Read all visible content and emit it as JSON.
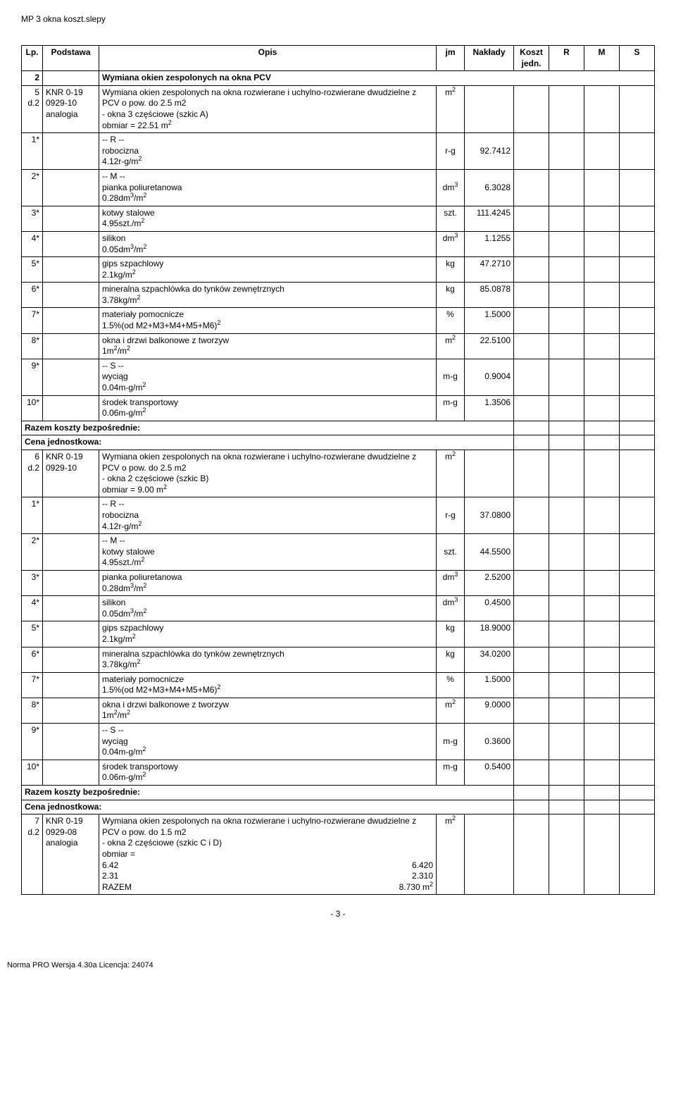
{
  "doc_title": "MP 3 okna koszt.slepy",
  "page_number": "- 3 -",
  "footer": "Norma PRO Wersja 4.30a Licencja: 24074",
  "headers": {
    "lp": "Lp.",
    "podstawa": "Podstawa",
    "opis": "Opis",
    "jm": "jm",
    "naklady": "Nakłady",
    "koszt": "Koszt jedn.",
    "r": "R",
    "m": "M",
    "s": "S"
  },
  "section2": {
    "lp": "2",
    "title": "Wymiana okien zespolonych na okna PCV"
  },
  "item5": {
    "lp": "5",
    "lp2": "d.2",
    "pod1": "KNR 0-19",
    "pod2": "0929-10",
    "pod3": "analogia",
    "opis1": "Wymiana okien zespolonych na okna rozwierane i uchylno-rozwierane dwudzielne z PCV o pow. do 2.5 m2",
    "opis2": "- okna 3 częściowe (szkic A)",
    "opis3": "obmiar  = 22.51 m",
    "jm": "m"
  },
  "r_label": "-- R --",
  "m_label": "-- M --",
  "s_label": "-- S --",
  "rows5": [
    {
      "lp": "1*",
      "opis": "robocizna",
      "sub": "4.12r-g/m",
      "jm": "r-g",
      "nak": "92.7412"
    },
    {
      "lp": "2*",
      "opis": "pianka poliuretanowa",
      "sub": "0.28dm",
      "sub2": "/m",
      "jm": "dm",
      "nak": "6.3028"
    },
    {
      "lp": "3*",
      "opis": "kotwy stalowe",
      "sub": "4.95szt./m",
      "jm": "szt.",
      "nak": "111.4245"
    },
    {
      "lp": "4*",
      "opis": "silikon",
      "sub": "0.05dm",
      "sub2": "/m",
      "jm": "dm",
      "nak": "1.1255"
    },
    {
      "lp": "5*",
      "opis": "gips szpachlowy",
      "sub": "2.1kg/m",
      "jm": "kg",
      "nak": "47.2710"
    },
    {
      "lp": "6*",
      "opis": "mineralna szpachlówka do tynków zewnętrznych",
      "sub": "3.78kg/m",
      "jm": "kg",
      "nak": "85.0878"
    },
    {
      "lp": "7*",
      "opis": "materiały pomocnicze",
      "sub": "1.5%(od M2+M3+M4+M5+M6)",
      "jm": "%",
      "nak": "1.5000"
    },
    {
      "lp": "8*",
      "opis": "okna i drzwi balkonowe z tworzyw",
      "sub": "1m",
      "sub2": "/m",
      "jm": "m",
      "nak": "22.5100"
    },
    {
      "lp": "9*",
      "opis": "wyciąg",
      "sub": "0.04m-g/m",
      "jm": "m-g",
      "nak": "0.9004"
    },
    {
      "lp": "10*",
      "opis": "środek transportowy",
      "sub": "0.06m-g/m",
      "jm": "m-g",
      "nak": "1.3506"
    }
  ],
  "razem": "Razem koszty bezpośrednie:",
  "cena": "Cena jednostkowa:",
  "item6": {
    "lp": "6",
    "lp2": "d.2",
    "pod1": "KNR 0-19",
    "pod2": "0929-10",
    "opis1": "Wymiana okien zespolonych na okna rozwierane i uchylno-rozwierane dwudzielne z PCV o pow. do 2.5 m2",
    "opis2": "- okna 2 częściowe (szkic B)",
    "opis3": "obmiar  = 9.00 m",
    "jm": "m"
  },
  "rows6": [
    {
      "lp": "1*",
      "opis": "robocizna",
      "sub": "4.12r-g/m",
      "jm": "r-g",
      "nak": "37.0800"
    },
    {
      "lp": "2*",
      "opis": "kotwy stalowe",
      "sub": "4.95szt./m",
      "jm": "szt.",
      "nak": "44.5500"
    },
    {
      "lp": "3*",
      "opis": "pianka poliuretanowa",
      "sub": "0.28dm",
      "sub2": "/m",
      "jm": "dm",
      "nak": "2.5200"
    },
    {
      "lp": "4*",
      "opis": "silikon",
      "sub": "0.05dm",
      "sub2": "/m",
      "jm": "dm",
      "nak": "0.4500"
    },
    {
      "lp": "5*",
      "opis": "gips szpachlowy",
      "sub": "2.1kg/m",
      "jm": "kg",
      "nak": "18.9000"
    },
    {
      "lp": "6*",
      "opis": "mineralna szpachlówka do tynków zewnętrznych",
      "sub": "3.78kg/m",
      "jm": "kg",
      "nak": "34.0200"
    },
    {
      "lp": "7*",
      "opis": "materiały pomocnicze",
      "sub": "1.5%(od M2+M3+M4+M5+M6)",
      "jm": "%",
      "nak": "1.5000"
    },
    {
      "lp": "8*",
      "opis": "okna i drzwi balkonowe z tworzyw",
      "sub": "1m",
      "sub2": "/m",
      "jm": "m",
      "nak": "9.0000"
    },
    {
      "lp": "9*",
      "opis": "wyciąg",
      "sub": "0.04m-g/m",
      "jm": "m-g",
      "nak": "0.3600"
    },
    {
      "lp": "10*",
      "opis": "środek transportowy",
      "sub": "0.06m-g/m",
      "jm": "m-g",
      "nak": "0.5400"
    }
  ],
  "item7": {
    "lp": "7",
    "lp2": "d.2",
    "pod1": "KNR 0-19",
    "pod2": "0929-08",
    "pod3": "analogia",
    "opis1": "Wymiana okien zespolonych na okna rozwierane i uchylno-rozwierane dwudzielne z PCV o pow. do 1.5 m2",
    "opis2": "- okna 2 częściowe (szkic C i D)",
    "opis3": "obmiar  =",
    "l1a": "6.42",
    "l1b": "6.420",
    "l2a": "2.31",
    "l2b": "2.310",
    "l3a": "RAZEM",
    "l3b": "8.730 m",
    "jm": "m"
  }
}
